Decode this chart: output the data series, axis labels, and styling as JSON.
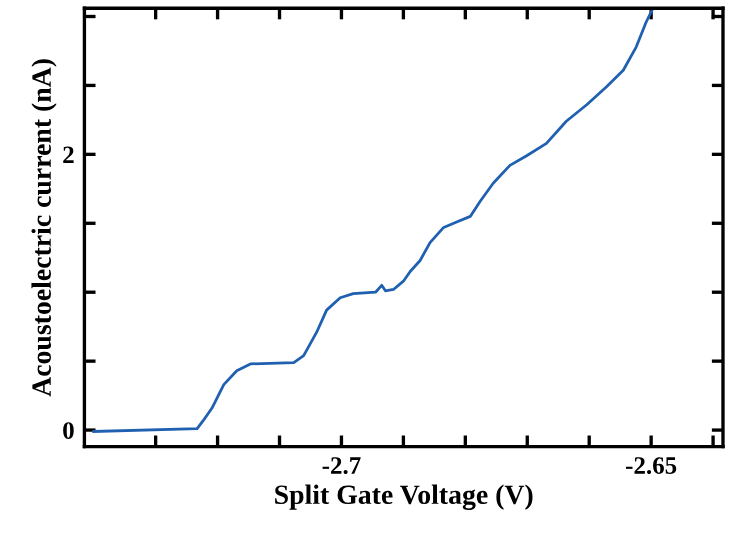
{
  "chart_data": {
    "type": "line",
    "xlabel": "Split Gate Voltage (V)",
    "ylabel": "Acoustoelectric current (nA)",
    "xlim": [
      -2.7415,
      -2.6384
    ],
    "ylim": [
      -0.12,
      3.06
    ],
    "xticks": [
      {
        "value": -2.73,
        "label": null
      },
      {
        "value": -2.72,
        "label": null
      },
      {
        "value": -2.71,
        "label": null
      },
      {
        "value": -2.7,
        "label": "-2.7"
      },
      {
        "value": -2.69,
        "label": null
      },
      {
        "value": -2.68,
        "label": null
      },
      {
        "value": -2.67,
        "label": null
      },
      {
        "value": -2.66,
        "label": null
      },
      {
        "value": -2.65,
        "label": "-2.65"
      },
      {
        "value": -2.64,
        "label": null
      }
    ],
    "yticks": [
      0,
      {
        "value": 0.5,
        "label": null
      },
      {
        "value": 1,
        "label": null
      },
      {
        "value": 1.5,
        "label": null
      },
      2,
      {
        "value": 2.5,
        "label": null
      },
      {
        "value": 3,
        "label": null
      }
    ],
    "grid": false,
    "legend": false,
    "marker": "none",
    "line_style": "solid",
    "series": [
      {
        "color": "#2060b0",
        "x": [
          -2.74,
          -2.7233,
          -2.7223,
          -2.7209,
          -2.719,
          -2.7169,
          -2.7147,
          -2.7077,
          -2.7061,
          -2.704,
          -2.7024,
          -2.7002,
          -2.6981,
          -2.6945,
          -2.6935,
          -2.6929,
          -2.6916,
          -2.69,
          -2.6889,
          -2.6873,
          -2.6857,
          -2.6835,
          -2.6814,
          -2.6792,
          -2.6776,
          -2.6755,
          -2.6728,
          -2.6701,
          -2.6669,
          -2.6637,
          -2.6604,
          -2.6572,
          -2.6545,
          -2.6524,
          -2.6508,
          -2.6497
        ],
        "values": [
          -0.01,
          0.01,
          0.07,
          0.16,
          0.33,
          0.43,
          0.48,
          0.49,
          0.54,
          0.71,
          0.87,
          0.96,
          0.99,
          1.0,
          1.05,
          1.01,
          1.02,
          1.08,
          1.15,
          1.23,
          1.36,
          1.47,
          1.51,
          1.55,
          1.66,
          1.79,
          1.92,
          1.99,
          2.08,
          2.24,
          2.36,
          2.49,
          2.61,
          2.78,
          2.96,
          3.06
        ]
      }
    ]
  }
}
